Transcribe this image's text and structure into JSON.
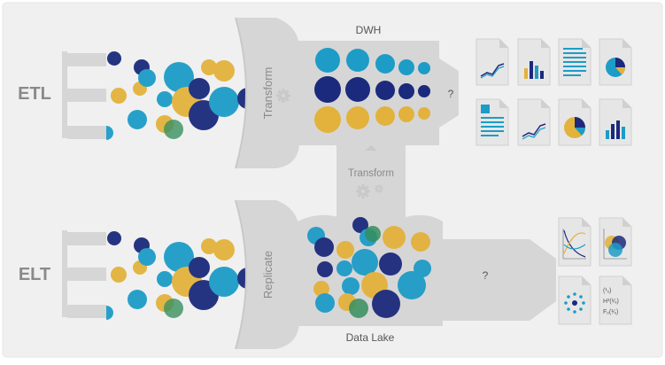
{
  "labels": {
    "etl": "ETL",
    "elt": "ELT",
    "transform_top": "Transform",
    "replicate": "Replicate",
    "transform_mid": "Transform",
    "dwh": "DWH",
    "data_lake": "Data Lake",
    "q_top": "?",
    "q_bottom": "?"
  },
  "formula_lines": [
    "(¹ₓ)",
    "H³(¹⁄ₓ)",
    "Fₒ(¹⁄ₓ)"
  ],
  "colors": {
    "background": "#f0f0f0",
    "frame": "#e6e6e6",
    "shape": "#d6d6d6",
    "shape_dark": "#c9c9c9",
    "label": "#8a8a8a",
    "text_dark": "#555555",
    "navy": "#1b2a7c",
    "teal": "#1d9cc7",
    "gold": "#e3b23c",
    "green": "#2e8b57"
  },
  "icons": {
    "etl_outputs": [
      "line-chart-doc-icon",
      "bar-chart-doc-icon",
      "text-doc-icon",
      "pie-chart-doc-icon",
      "text-doc-icon",
      "line-chart-doc-icon",
      "pie-chart-doc-icon",
      "bar-chart-doc-icon"
    ],
    "elt_outputs": [
      "curve-plot-doc-icon",
      "venn-doc-icon",
      "network-doc-icon",
      "formula-doc-icon"
    ],
    "gears": [
      "gear-icon",
      "gear-icon",
      "gear-icon"
    ]
  }
}
